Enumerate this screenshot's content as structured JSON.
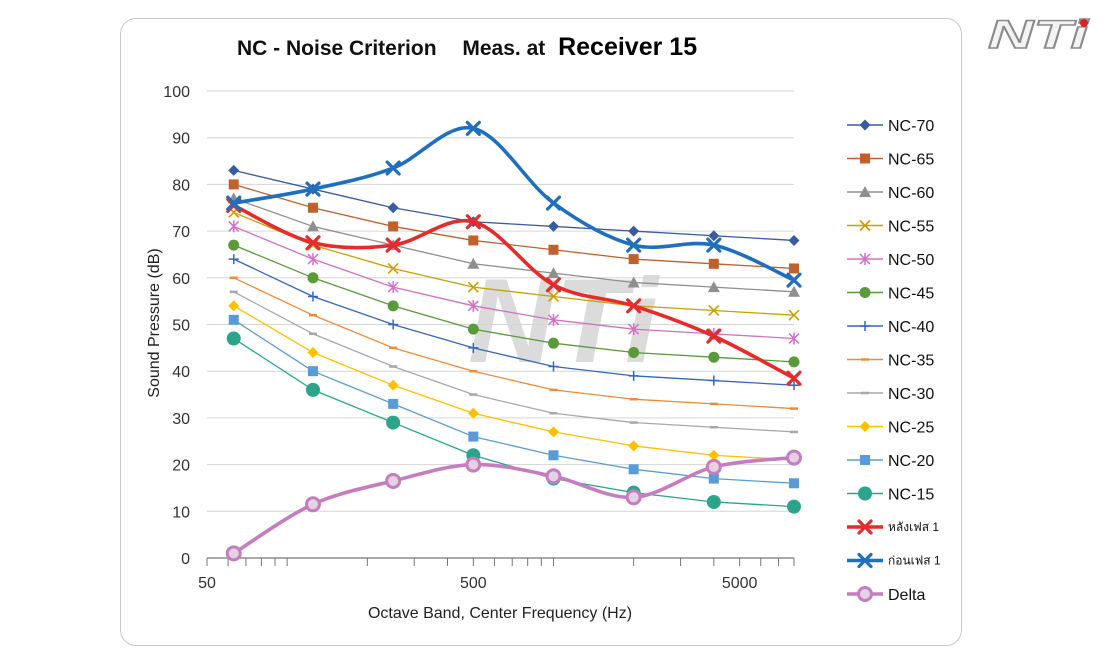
{
  "logo": {
    "text": "NTi",
    "accent": "#e02020"
  },
  "chart_data": {
    "type": "line",
    "title": "NC - Noise Criterion",
    "subtitle_prefix": "Meas. at",
    "subtitle": "Receiver 15",
    "xlabel": "Octave Band, Center Frequency (Hz)",
    "ylabel": "Sound Pressure (dB)",
    "x_scale": "log",
    "xlim": [
      50,
      8000
    ],
    "ylim": [
      0,
      100
    ],
    "x_ticks": [
      50,
      500,
      5000
    ],
    "x_tick_labels": [
      "50",
      "500",
      "5000"
    ],
    "y_ticks": [
      0,
      10,
      20,
      30,
      40,
      50,
      60,
      70,
      80,
      90,
      100
    ],
    "y_tick_labels": [
      "0",
      "10",
      "20",
      "30",
      "40",
      "50",
      "60",
      "70",
      "80",
      "90",
      "100"
    ],
    "grid": "horizontal",
    "legend_position": "right",
    "x": [
      63,
      125,
      250,
      500,
      1000,
      2000,
      4000,
      8000
    ],
    "series": [
      {
        "name": "NC-70",
        "color": "#3a5ba0",
        "marker": "diamond",
        "values": [
          83,
          79,
          75,
          72,
          71,
          70,
          69,
          68
        ]
      },
      {
        "name": "NC-65",
        "color": "#c0602b",
        "marker": "square",
        "values": [
          80,
          75,
          71,
          68,
          66,
          64,
          63,
          62
        ]
      },
      {
        "name": "NC-60",
        "color": "#8f8f8f",
        "marker": "triangle",
        "values": [
          77,
          71,
          67,
          63,
          61,
          59,
          58,
          57
        ]
      },
      {
        "name": "NC-55",
        "color": "#c9a000",
        "marker": "x",
        "values": [
          74,
          67,
          62,
          58,
          56,
          54,
          53,
          52
        ]
      },
      {
        "name": "NC-50",
        "color": "#d071c3",
        "marker": "star",
        "values": [
          71,
          64,
          58,
          54,
          51,
          49,
          48,
          47
        ]
      },
      {
        "name": "NC-45",
        "color": "#5a9a3a",
        "marker": "circle",
        "values": [
          67,
          60,
          54,
          49,
          46,
          44,
          43,
          42
        ]
      },
      {
        "name": "NC-40",
        "color": "#3566c0",
        "marker": "plus",
        "values": [
          64,
          56,
          50,
          45,
          41,
          39,
          38,
          37
        ]
      },
      {
        "name": "NC-35",
        "color": "#ef8a3a",
        "marker": "dash",
        "values": [
          60,
          52,
          45,
          40,
          36,
          34,
          33,
          32
        ]
      },
      {
        "name": "NC-30",
        "color": "#a8a8a8",
        "marker": "dash",
        "values": [
          57,
          48,
          41,
          35,
          31,
          29,
          28,
          27
        ]
      },
      {
        "name": "NC-25",
        "color": "#ffc000",
        "marker": "diamond",
        "values": [
          54,
          44,
          37,
          31,
          27,
          24,
          22,
          21
        ]
      },
      {
        "name": "NC-20",
        "color": "#5b9bd5",
        "marker": "square",
        "values": [
          51,
          40,
          33,
          26,
          22,
          19,
          17,
          16
        ]
      },
      {
        "name": "NC-15",
        "color": "#2aa58a",
        "marker": "bigcircle",
        "values": [
          47,
          36,
          29,
          22,
          17,
          14,
          12,
          11
        ]
      },
      {
        "name": "หลังเฟส 1",
        "color": "#e52b2b",
        "marker": "bigx",
        "smooth": true,
        "values": [
          75.5,
          67.5,
          67,
          72,
          58.5,
          54,
          47.5,
          38.5
        ]
      },
      {
        "name": "ก่อนเฟส 1",
        "color": "#1f6fbf",
        "marker": "bigx",
        "smooth": true,
        "values": [
          76,
          79,
          83.5,
          92,
          76,
          67,
          67,
          59.5
        ]
      },
      {
        "name": "Delta",
        "color": "#c67dbf",
        "marker": "ring",
        "smooth": true,
        "values": [
          1,
          11.5,
          16.5,
          20,
          17.5,
          13,
          19.5,
          21.5
        ]
      }
    ]
  }
}
